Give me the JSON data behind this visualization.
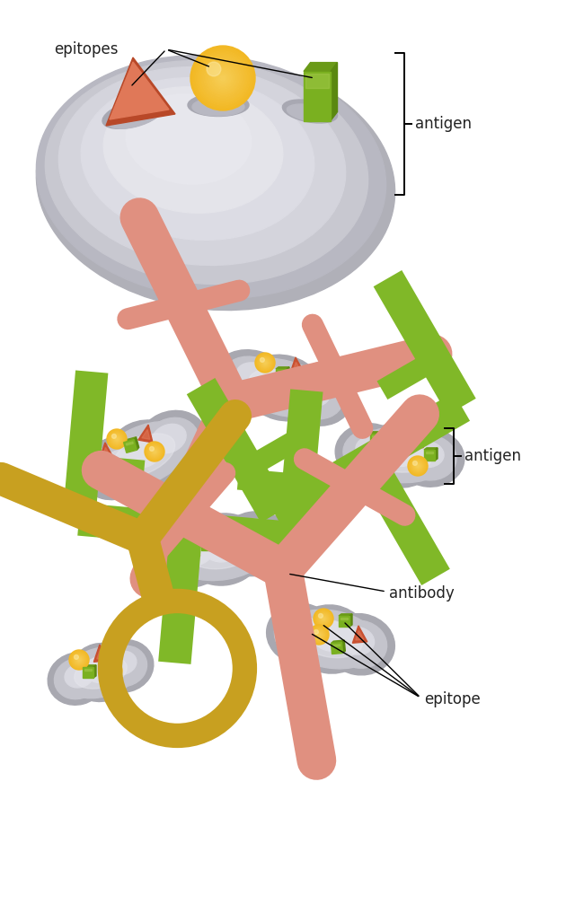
{
  "bg_color": "#ffffff",
  "orange_sphere": "#f2b824",
  "orange_sphere_light": "#f8d870",
  "red_tri_dark": "#c85030",
  "red_tri_light": "#e07858",
  "green_rect_dark": "#7ab020",
  "green_rect_light": "#a8cc50",
  "antibody_salmon": "#e09080",
  "antibody_green": "#80b828",
  "antibody_yellow": "#c8a020",
  "antigen_dark": "#a8a8b0",
  "antigen_mid": "#c4c4cc",
  "antigen_light": "#d8d8e0",
  "antigen_vlight": "#e8e8ee",
  "label_color": "#222222",
  "label_fs": 12,
  "antigen_label": "antigen",
  "antibody_label": "antibody",
  "epitope_label": "epitope",
  "epitopes_label": "epitopes"
}
